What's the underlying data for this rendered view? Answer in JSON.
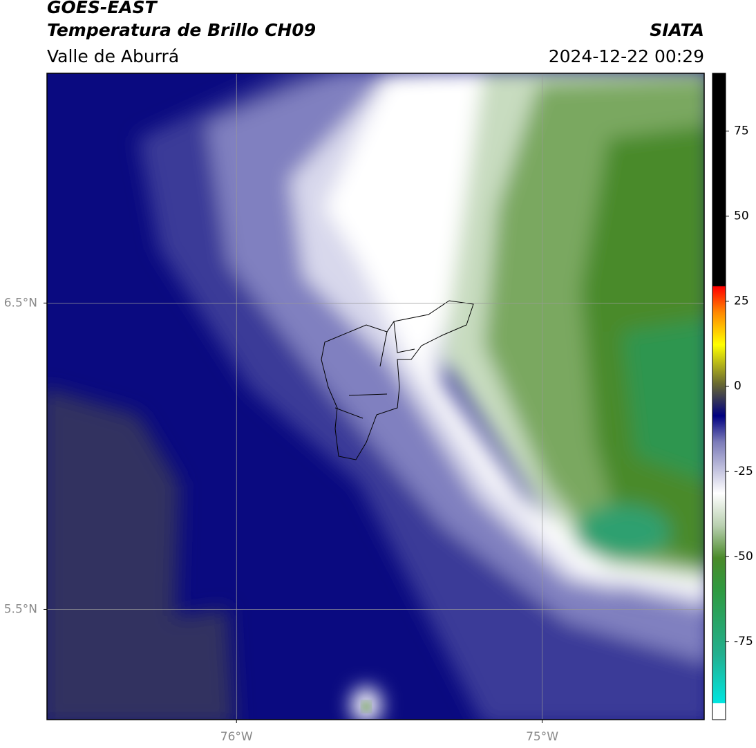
{
  "header": {
    "title": "GOES-EAST",
    "subtitle": "Temperatura de Brillo CH09",
    "region": "Valle de Aburrá",
    "source": "SIATA",
    "timestamp": "2024-12-22 00:29"
  },
  "map": {
    "xlim": [
      -76.62,
      -74.47
    ],
    "ylim": [
      5.14,
      7.25
    ],
    "xticks": [
      {
        "value": -76,
        "label": "76°W"
      },
      {
        "value": -75,
        "label": "75°W"
      }
    ],
    "yticks": [
      {
        "value": 6.5,
        "label": "6.5°N"
      },
      {
        "value": 5.5,
        "label": "5.5°N"
      }
    ],
    "grid": true
  },
  "colorbar": {
    "lim": [
      -98,
      92
    ],
    "ticks": [
      75,
      50,
      25,
      0,
      -25,
      -50,
      -75
    ]
  }
}
